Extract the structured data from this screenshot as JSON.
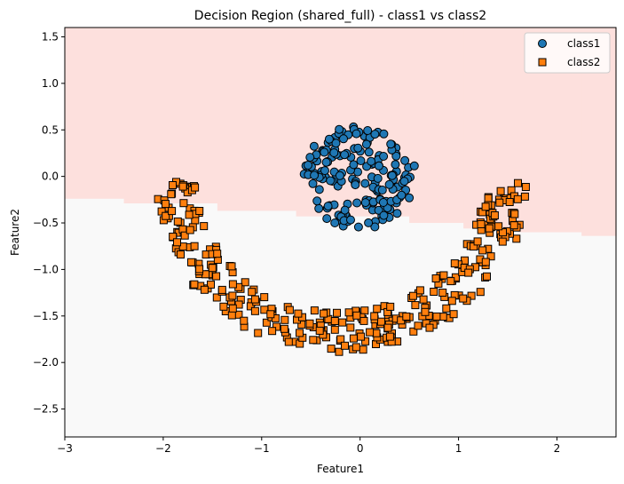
{
  "chart_data": {
    "type": "scatter",
    "title": "Decision Region (shared_full) - class1 vs class2",
    "xlabel": "Feature1",
    "ylabel": "Feature2",
    "xlim": [
      -3.0,
      2.6
    ],
    "ylim": [
      -2.8,
      1.6
    ],
    "xticks": [
      -3,
      -2,
      -1,
      0,
      1,
      2
    ],
    "xtick_labels": [
      "−3",
      "−2",
      "−1",
      "0",
      "1",
      "2"
    ],
    "yticks": [
      1.5,
      1.0,
      0.5,
      0.0,
      -0.5,
      -1.0,
      -1.5,
      -2.0,
      -2.5
    ],
    "ytick_labels": [
      "1.5",
      "1.0",
      "0.5",
      "0.0",
      "−0.5",
      "−1.0",
      "−1.5",
      "−2.0",
      "−2.5"
    ],
    "grid": false,
    "legend_position": "top-right",
    "decision_boundary": {
      "upper_region_color": "#fde0dd",
      "lower_region_color": "#f9f9f9",
      "steps": [
        {
          "x0": -3.0,
          "x1": -2.4,
          "y": -0.24
        },
        {
          "x0": -2.4,
          "x1": -1.45,
          "y": -0.29
        },
        {
          "x0": -1.45,
          "x1": -0.65,
          "y": -0.37
        },
        {
          "x0": -0.65,
          "x1": 0.5,
          "y": -0.43
        },
        {
          "x0": 0.5,
          "x1": 1.05,
          "y": -0.5
        },
        {
          "x0": 1.05,
          "x1": 1.6,
          "y": -0.56
        },
        {
          "x0": 1.6,
          "x1": 2.25,
          "y": -0.6
        },
        {
          "x0": 2.25,
          "x1": 2.6,
          "y": -0.64
        }
      ]
    },
    "series": [
      {
        "name": "class1",
        "marker": "circle",
        "color": "#1f77b4",
        "generator": {
          "shape": "disk",
          "center": [
            0.0,
            0.0
          ],
          "radius": 0.57,
          "count": 180
        }
      },
      {
        "name": "class2",
        "marker": "square",
        "color": "#ff7f0e",
        "generator": {
          "shape": "arc",
          "center": [
            -0.2,
            -0.05
          ],
          "rx": 1.68,
          "ry": 1.62,
          "thickness": 0.22,
          "count": 330
        }
      }
    ]
  }
}
